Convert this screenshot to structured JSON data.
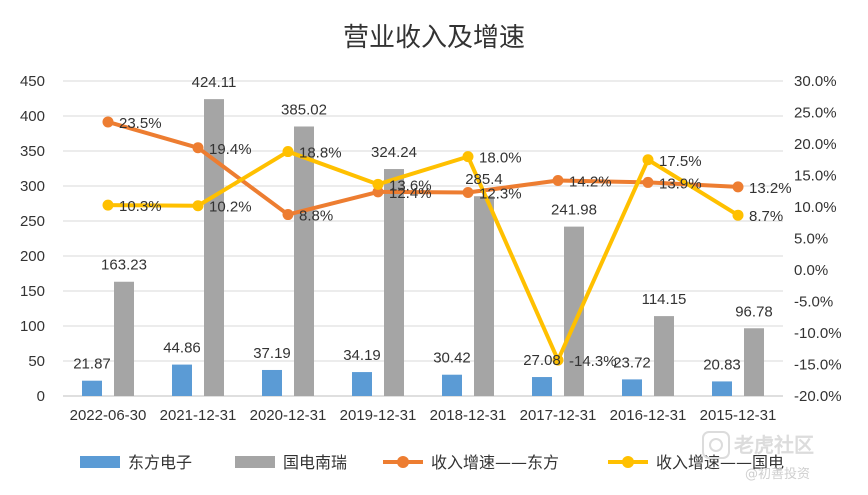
{
  "chart_data": {
    "type": "bar+line",
    "title": "营业收入及增速",
    "categories": [
      "2022-06-30",
      "2021-12-31",
      "2020-12-31",
      "2019-12-31",
      "2018-12-31",
      "2017-12-31",
      "2016-12-31",
      "2015-12-31"
    ],
    "y_left": {
      "ylim": [
        0,
        450
      ],
      "ticks": [
        "0",
        "50",
        "100",
        "150",
        "200",
        "250",
        "300",
        "350",
        "400",
        "450"
      ]
    },
    "y_right": {
      "ylim": [
        -20,
        30
      ],
      "ticks": [
        "-20.0%",
        "-15.0%",
        "-10.0%",
        "-5.0%",
        "0.0%",
        "5.0%",
        "10.0%",
        "15.0%",
        "20.0%",
        "25.0%",
        "30.0%"
      ]
    },
    "bar_series": [
      {
        "name": "东方电子",
        "color": "#5b9bd5",
        "values": [
          21.87,
          44.86,
          37.19,
          34.19,
          30.42,
          27.08,
          23.72,
          20.83
        ],
        "labels": [
          "21.87",
          "44.86",
          "37.19",
          "34.19",
          "30.42",
          "27.08",
          "23.72",
          "20.83"
        ]
      },
      {
        "name": "国电南瑞",
        "color": "#a5a5a5",
        "values": [
          163.23,
          424.11,
          385.02,
          324.24,
          285.4,
          241.98,
          114.15,
          96.78
        ],
        "labels": [
          "163.23",
          "424.11",
          "385.02",
          "324.24",
          "285.4",
          "241.98",
          "114.15",
          "96.78"
        ]
      }
    ],
    "line_series": [
      {
        "name": "收入增速——东方",
        "color": "#ed7d31",
        "values": [
          23.5,
          19.4,
          8.8,
          12.4,
          12.3,
          14.2,
          13.9,
          13.2
        ],
        "labels": [
          "23.5%",
          "19.4%",
          "8.8%",
          "12.4%",
          "12.3%",
          "14.2%",
          "13.9%",
          "13.2%"
        ]
      },
      {
        "name": "收入增速——国电",
        "color": "#ffc000",
        "values": [
          10.3,
          10.2,
          18.8,
          13.6,
          18.0,
          -14.3,
          17.5,
          8.7
        ],
        "labels": [
          "10.3%",
          "10.2%",
          "18.8%",
          "13.6%",
          "18.0%",
          "-14.3%",
          "17.5%",
          "8.7%"
        ]
      }
    ],
    "grid": true,
    "legend_position": "bottom"
  },
  "watermark": {
    "logo_text": "老虎社区",
    "sub_text": "@初善投资"
  }
}
